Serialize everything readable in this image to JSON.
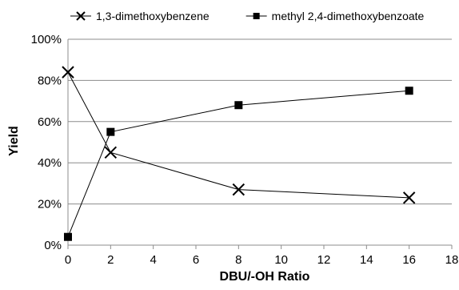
{
  "chart_data": {
    "type": "scatter",
    "title": "",
    "xlabel": "DBU/-OH Ratio",
    "ylabel": "Yield",
    "xlim": [
      0,
      18
    ],
    "ylim": [
      0,
      100
    ],
    "x_ticks": [
      0,
      2,
      4,
      6,
      8,
      10,
      12,
      14,
      16,
      18
    ],
    "y_ticks": [
      0,
      20,
      40,
      60,
      80,
      100
    ],
    "y_tick_labels": [
      "0%",
      "20%",
      "40%",
      "60%",
      "80%",
      "100%"
    ],
    "grid": "horizontal",
    "legend_position": "top",
    "series": [
      {
        "name": "1,3-dimethoxybenzene",
        "marker": "x",
        "color": "#000000",
        "x": [
          0,
          2,
          8,
          16
        ],
        "y": [
          84,
          45,
          27,
          23
        ]
      },
      {
        "name": "methyl 2,4-dimethoxybenzoate",
        "marker": "square",
        "color": "#000000",
        "x": [
          0,
          2,
          8,
          16
        ],
        "y": [
          4,
          55,
          68,
          75
        ]
      }
    ]
  }
}
